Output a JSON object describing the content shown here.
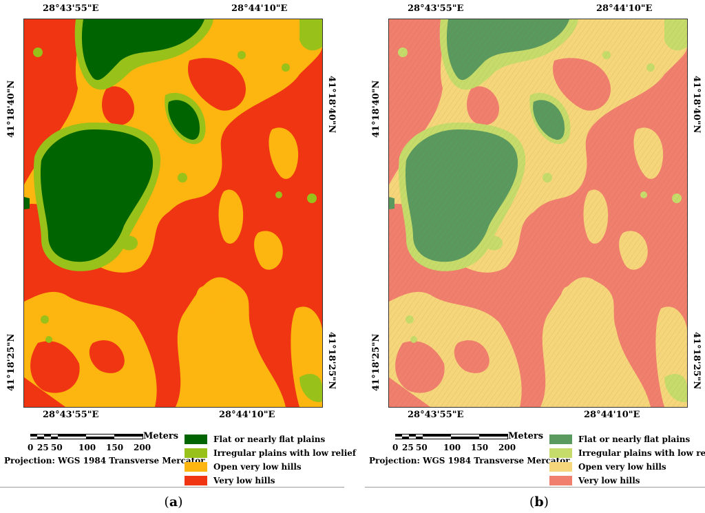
{
  "panels": [
    {
      "id": "a",
      "caption_letter": "a",
      "coords": {
        "top_left": "28°43'55\"E",
        "top_right": "28°44'10\"E",
        "bottom_left": "28°43'55\"E",
        "bottom_right": "28°44'10\"E",
        "left_top": "41°18'40\"N",
        "left_bottom": "41°18'25\"N",
        "right_top": "41°18'40\"N",
        "right_bottom": "41°18'25\"N"
      },
      "scale": {
        "unit": "Meters",
        "ticks": [
          "0",
          "25",
          "50",
          "100",
          "150",
          "200"
        ]
      },
      "projection": "Projection: WGS 1984 Transverse Mercator",
      "legend": [
        {
          "label": "Flat or nearly flat plains",
          "color": "#006400"
        },
        {
          "label": "Irregular plains with low relief",
          "color": "#98c11a"
        },
        {
          "label": "Open very low hills",
          "color": "#fdb50f"
        },
        {
          "label": "Very low hills",
          "color": "#f03512"
        }
      ]
    },
    {
      "id": "b",
      "caption_letter": "b",
      "coords": {
        "top_left": "28°43'55\"E",
        "top_right": "28°44'10\"E",
        "bottom_left": "28°43'55\"E",
        "bottom_right": "28°44'10\"E",
        "left_top": "41°18'40\"N",
        "left_bottom": "41°18'25\"N",
        "right_top": "41°18'40\"N",
        "right_bottom": "41°18'25\"N"
      },
      "scale": {
        "unit": "Meters",
        "ticks": [
          "0",
          "25",
          "50",
          "100",
          "150",
          "200"
        ]
      },
      "projection": "Projection: WGS 1984 Transverse Mercator",
      "legend": [
        {
          "label": "Flat or nearly flat plains",
          "color": "#5b9a5f"
        },
        {
          "label": "Irregular plains with low relief",
          "color": "#c6dc6a"
        },
        {
          "label": "Open very low hills",
          "color": "#f5d67a"
        },
        {
          "label": "Very low hills",
          "color": "#f07f6e"
        }
      ]
    }
  ]
}
